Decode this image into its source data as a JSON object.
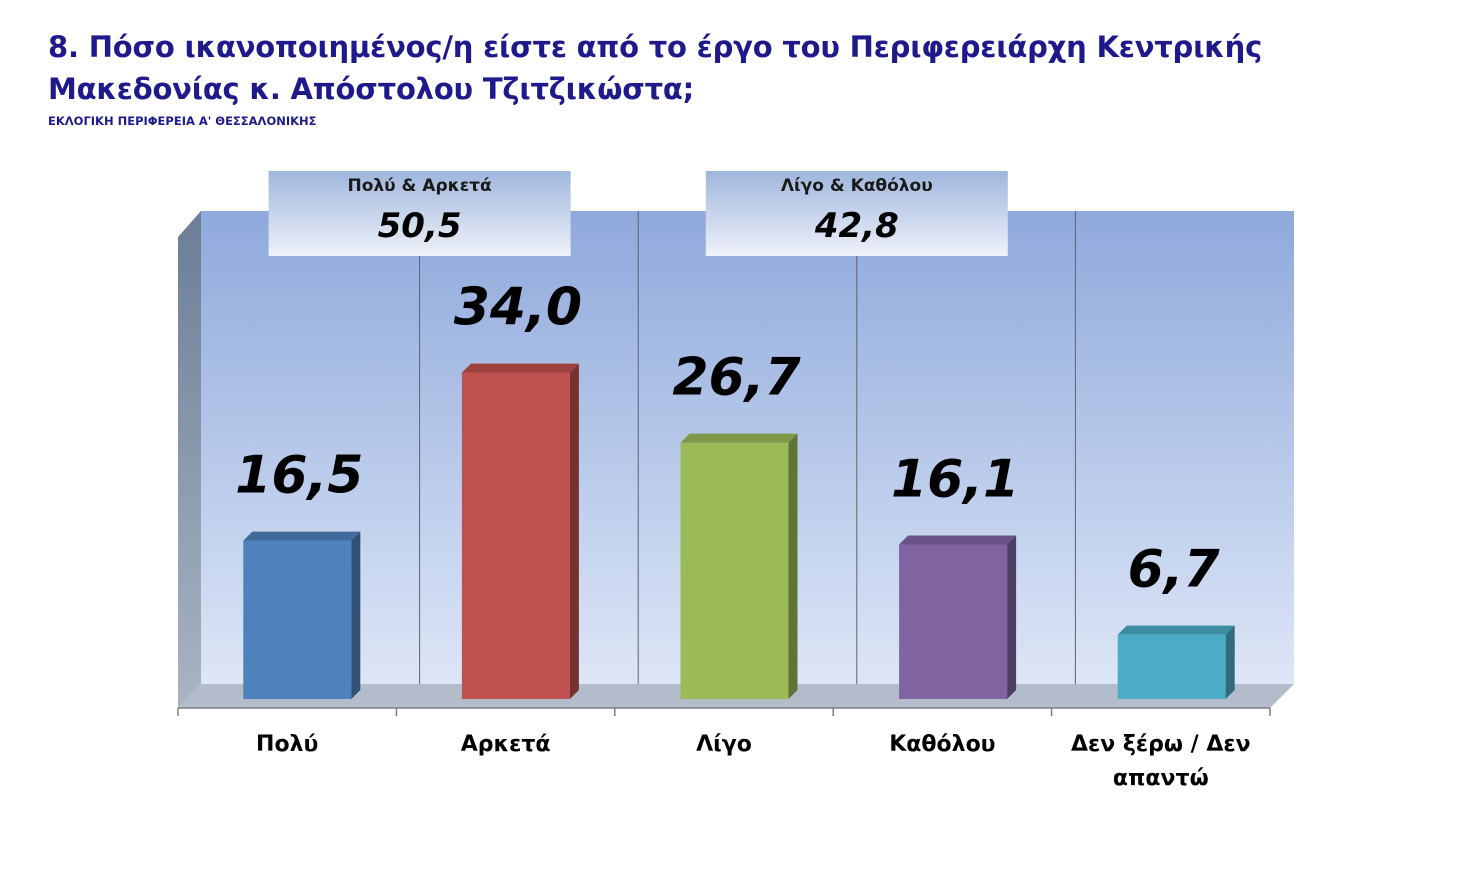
{
  "title": "8. Πόσο ικανοποιημένος/η είστε από το έργο του Περιφερειάρχη Κεντρικής Μακεδονίας κ. Απόστολου Τζιτζικώστα;",
  "subtitle": "ΕΚΛΟΓΙΚΗ ΠΕΡΙΦΕΡΕΙΑ Α' ΘΕΣΣΑΛΟΝΙΚΗΣ",
  "summary_boxes": [
    {
      "label": "Πολύ & Αρκετά",
      "value": "50,5"
    },
    {
      "label": "Λίγο & Καθόλου",
      "value": "42,8"
    }
  ],
  "chart_data": {
    "type": "bar",
    "title": "8. Πόσο ικανοποιημένος/η είστε από το έργο του Περιφερειάρχη Κεντρικής Μακεδονίας κ. Απόστολου Τζιτζικώστα;",
    "categories": [
      "Πολύ",
      "Αρκετά",
      "Λίγο",
      "Καθόλου",
      "Δεν ξέρω / Δεν απαντώ"
    ],
    "values": [
      16.5,
      34.0,
      26.7,
      16.1,
      6.7
    ],
    "value_labels": [
      "16,5",
      "34,0",
      "26,7",
      "16,1",
      "6,7"
    ],
    "colors": [
      "#4f81bd",
      "#c0504d",
      "#9bbb59",
      "#8064a2",
      "#4bacc6"
    ],
    "xlabel": "",
    "ylabel": "",
    "ylim": [
      0,
      50
    ],
    "grid": false,
    "legend": "none"
  }
}
